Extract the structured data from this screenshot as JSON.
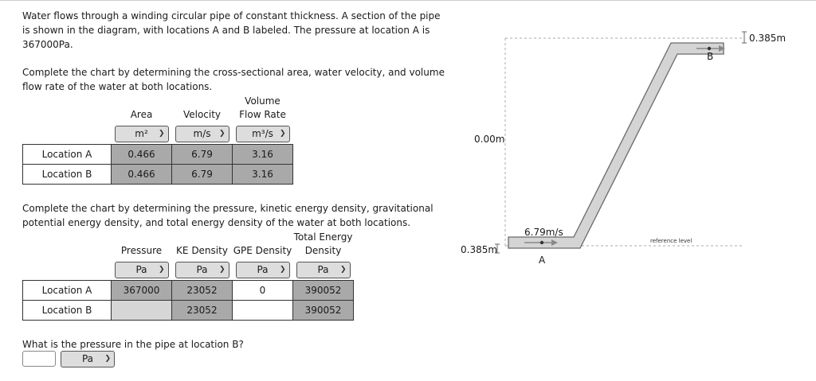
{
  "intro": {
    "line1": "Water flows through a winding circular pipe of constant thickness. A section of the pipe",
    "line2": "is shown in the diagram, with locations A and B labeled. The pressure at location A is",
    "line3": "367000Pa."
  },
  "chart1_prompt": {
    "line1": "Complete the chart by determining the cross-sectional area, water velocity, and volume",
    "line2": "flow rate of the water at both locations."
  },
  "chart1": {
    "headers": {
      "area": "Area",
      "velocity": "Velocity",
      "flow1": "Volume",
      "flow2": "Flow Rate"
    },
    "units": {
      "area": "m²",
      "velocity": "m/s",
      "flow": "m³/s"
    },
    "rows": [
      {
        "label": "Location A",
        "area": "0.466",
        "velocity": "6.79",
        "flow": "3.16"
      },
      {
        "label": "Location B",
        "area": "0.466",
        "velocity": "6.79",
        "flow": "3.16"
      }
    ]
  },
  "chart2_prompt": {
    "line1": "Complete the chart by determining the pressure, kinetic energy density, gravitational",
    "line2": "potential energy density, and total energy density of the water at both locations."
  },
  "chart2": {
    "headers": {
      "pressure": "Pressure",
      "ke": "KE Density",
      "gpe": "GPE Density",
      "total1": "Total Energy",
      "total2": "Density"
    },
    "units": {
      "pressure": "Pa",
      "ke": "Pa",
      "gpe": "Pa",
      "total": "Pa"
    },
    "rows": [
      {
        "label": "Location A",
        "pressure": "367000",
        "ke": "23052",
        "gpe": "0",
        "total": "390052"
      },
      {
        "label": "Location B",
        "pressure": "",
        "ke": "23052",
        "gpe": "",
        "total": "390052"
      }
    ]
  },
  "question": {
    "text": "What is the pressure in the pipe at location B?",
    "unit": "Pa",
    "value": ""
  },
  "diagram": {
    "height_b": "0.385m",
    "height_ref": "0.00m",
    "height_a": "0.385m",
    "velocity": "6.79m/s",
    "label_a": "A",
    "label_b": "B",
    "reference": "reference level"
  }
}
